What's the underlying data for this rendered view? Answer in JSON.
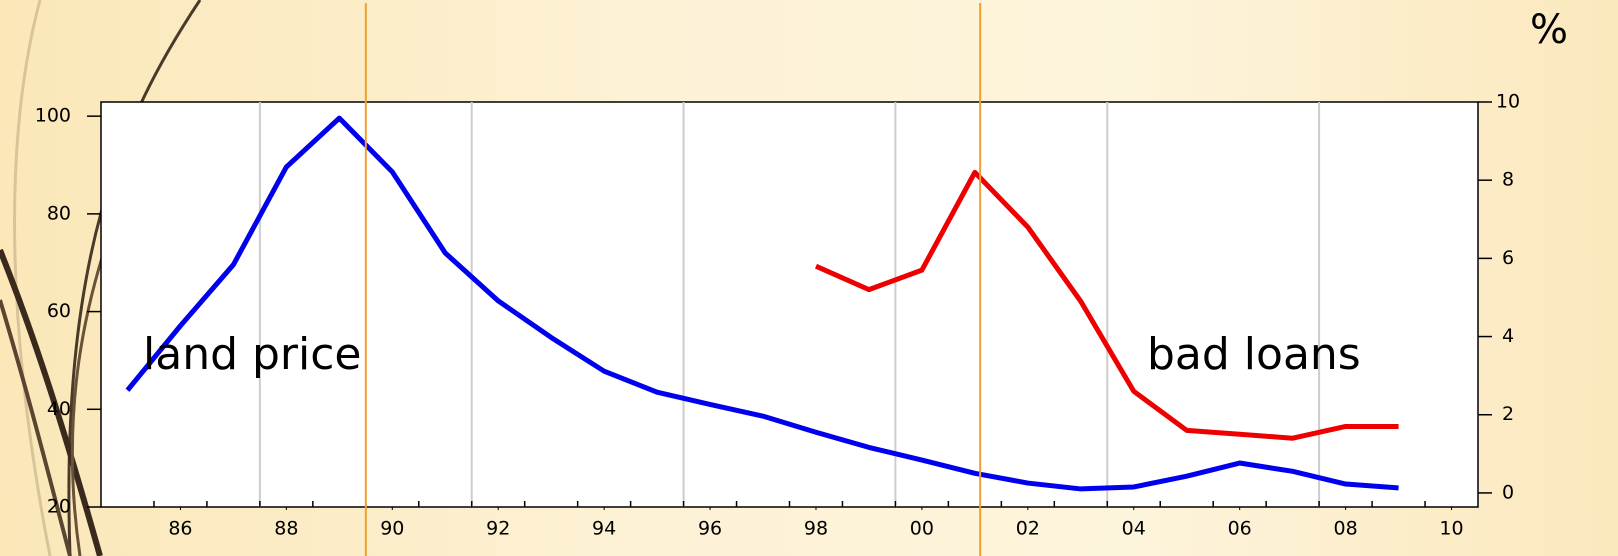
{
  "chart_data": {
    "type": "line",
    "x": [
      1985,
      1986,
      1987,
      1988,
      1989,
      1990,
      1991,
      1992,
      1993,
      1994,
      1995,
      1996,
      1997,
      1998,
      1999,
      2000,
      2001,
      2002,
      2003,
      2004,
      2005,
      2006,
      2007,
      2008,
      2009
    ],
    "series": [
      {
        "name": "land price",
        "color": "#0000ee",
        "axis": "y",
        "values": [
          43.9,
          57.1,
          69.6,
          89.6,
          99.6,
          88.6,
          72.0,
          62.2,
          54.7,
          47.8,
          43.5,
          41.0,
          38.6,
          35.3,
          32.2,
          29.6,
          26.9,
          24.9,
          23.7,
          24.1,
          26.3,
          29.0,
          27.3,
          24.7,
          23.9
        ]
      },
      {
        "name": "bad loans",
        "color": "#ee0000",
        "axis": "y2",
        "values": [
          null,
          null,
          null,
          null,
          null,
          null,
          null,
          null,
          null,
          null,
          null,
          null,
          null,
          5.8,
          5.2,
          5.7,
          8.2,
          6.8,
          4.9,
          2.6,
          1.6,
          1.5,
          1.4,
          1.7,
          1.7
        ]
      }
    ],
    "annotations": [
      "land price",
      "bad loans"
    ],
    "y2_unit": "%",
    "xlim": [
      1984.5,
      2010.5
    ],
    "xticks": [
      {
        "value": 1986,
        "label": "86"
      },
      {
        "value": 1988,
        "label": "88"
      },
      {
        "value": 1990,
        "label": "90"
      },
      {
        "value": 1992,
        "label": "92"
      },
      {
        "value": 1994,
        "label": "94"
      },
      {
        "value": 1996,
        "label": "96"
      },
      {
        "value": 1998,
        "label": "98"
      },
      {
        "value": 2000,
        "label": "00"
      },
      {
        "value": 2002,
        "label": "02"
      },
      {
        "value": 2004,
        "label": "04"
      },
      {
        "value": 2006,
        "label": "06"
      },
      {
        "value": 2008,
        "label": "08"
      },
      {
        "value": 2010,
        "label": "10"
      }
    ],
    "xgrid": [
      1987.5,
      1991.5,
      1995.5,
      1999.5,
      2003.5,
      2007.5
    ],
    "vlines": [
      1989.5,
      2001.1
    ],
    "vline_color": "#f0a030",
    "ylim": [
      20,
      102.9
    ],
    "yticks": [
      20,
      40,
      60,
      80,
      100
    ],
    "y2lim": [
      -0.36,
      10
    ],
    "y2ticks": [
      0,
      2,
      4,
      6,
      8,
      10
    ],
    "grid": true
  }
}
